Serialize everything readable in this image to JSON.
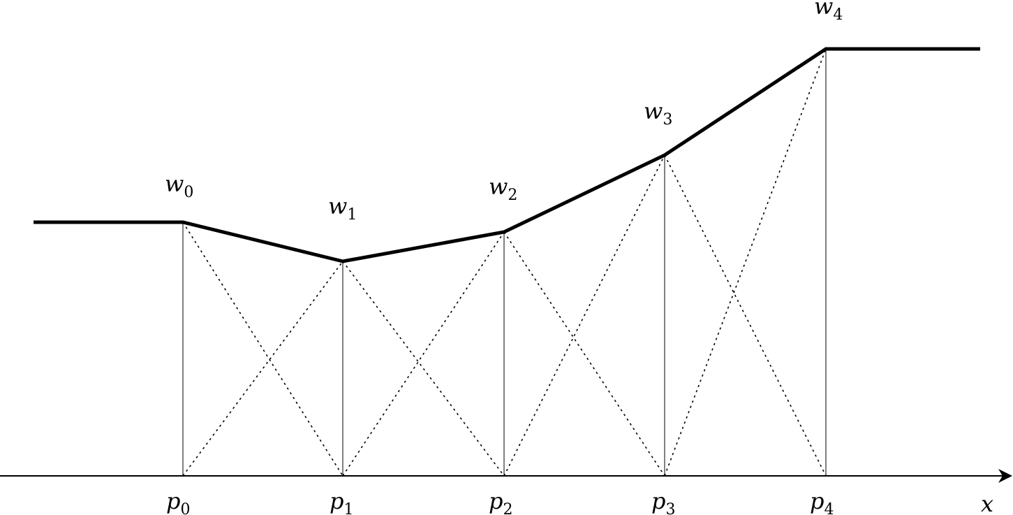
{
  "diagram": {
    "x_axis_label": "x",
    "knots": [
      {
        "p": "p",
        "p_sub": "0",
        "w": "w",
        "w_sub": "0"
      },
      {
        "p": "p",
        "p_sub": "1",
        "w": "w",
        "w_sub": "1"
      },
      {
        "p": "p",
        "p_sub": "2",
        "w": "w",
        "w_sub": "2"
      },
      {
        "p": "p",
        "p_sub": "3",
        "w": "w",
        "w_sub": "3"
      },
      {
        "p": "p",
        "p_sub": "4",
        "w": "w",
        "w_sub": "4"
      }
    ],
    "colors": {
      "ink": "#000000",
      "background": "#ffffff"
    }
  }
}
